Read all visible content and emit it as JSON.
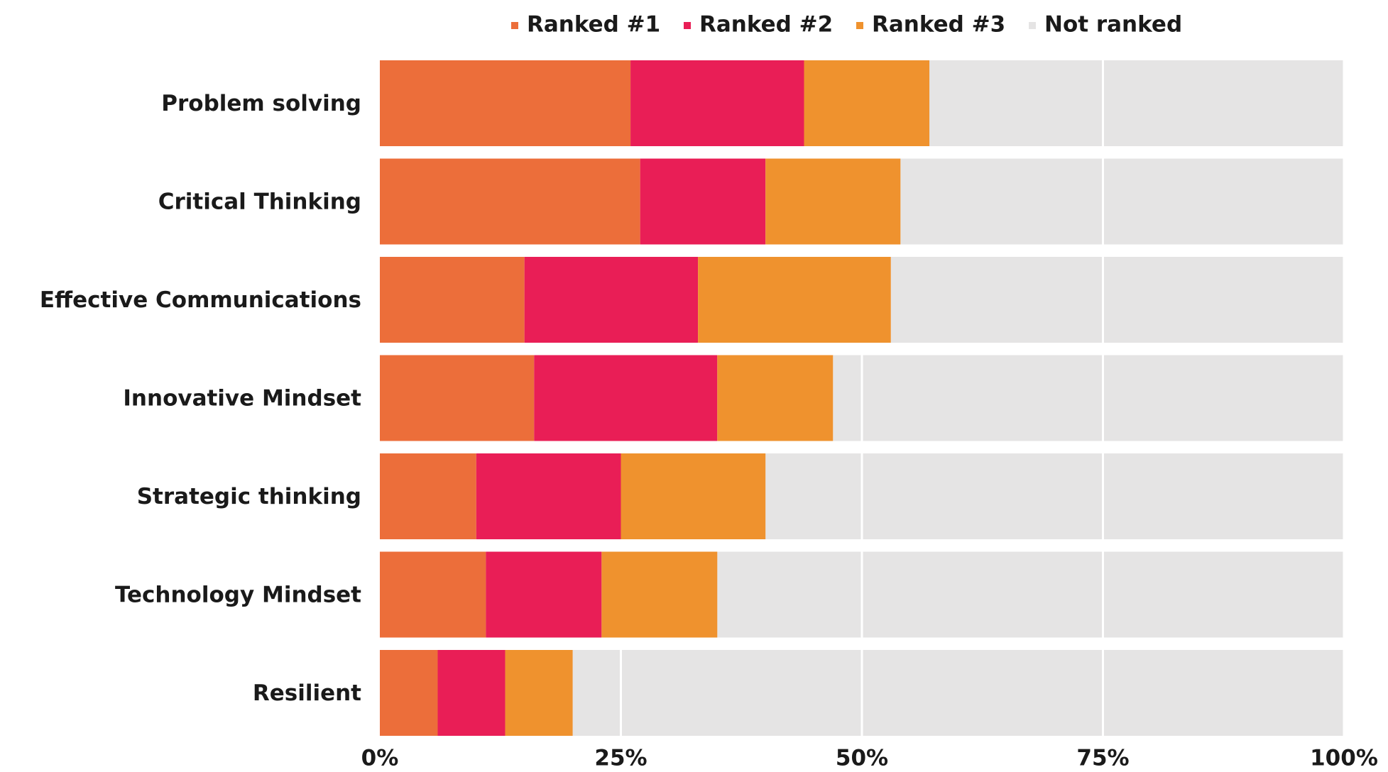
{
  "chart_data": {
    "type": "stacked_barh",
    "categories": [
      "Problem solving",
      "Critical Thinking",
      "Effective Communications",
      "Innovative Mindset",
      "Strategic thinking",
      "Technology Mindset",
      "Resilient"
    ],
    "series": [
      {
        "name": "Ranked #1",
        "color": "#ec6e3a",
        "values": [
          26,
          27,
          15,
          16,
          10,
          11,
          6
        ]
      },
      {
        "name": "Ranked #2",
        "color": "#e91e56",
        "values": [
          18,
          13,
          18,
          19,
          15,
          12,
          7
        ]
      },
      {
        "name": "Ranked #3",
        "color": "#ef922e",
        "values": [
          13,
          14,
          20,
          12,
          15,
          12,
          7
        ]
      },
      {
        "name": "Not ranked",
        "color": "#e5e4e4",
        "values": [
          43,
          46,
          47,
          53,
          60,
          65,
          80
        ]
      }
    ],
    "xlim": [
      0,
      100
    ],
    "xticks": [
      {
        "value": 0,
        "label": "0%"
      },
      {
        "value": 25,
        "label": "25%"
      },
      {
        "value": 50,
        "label": "50%"
      },
      {
        "value": 75,
        "label": "75%"
      },
      {
        "value": 100,
        "label": "100%"
      }
    ],
    "grid": true,
    "legend": "top"
  }
}
